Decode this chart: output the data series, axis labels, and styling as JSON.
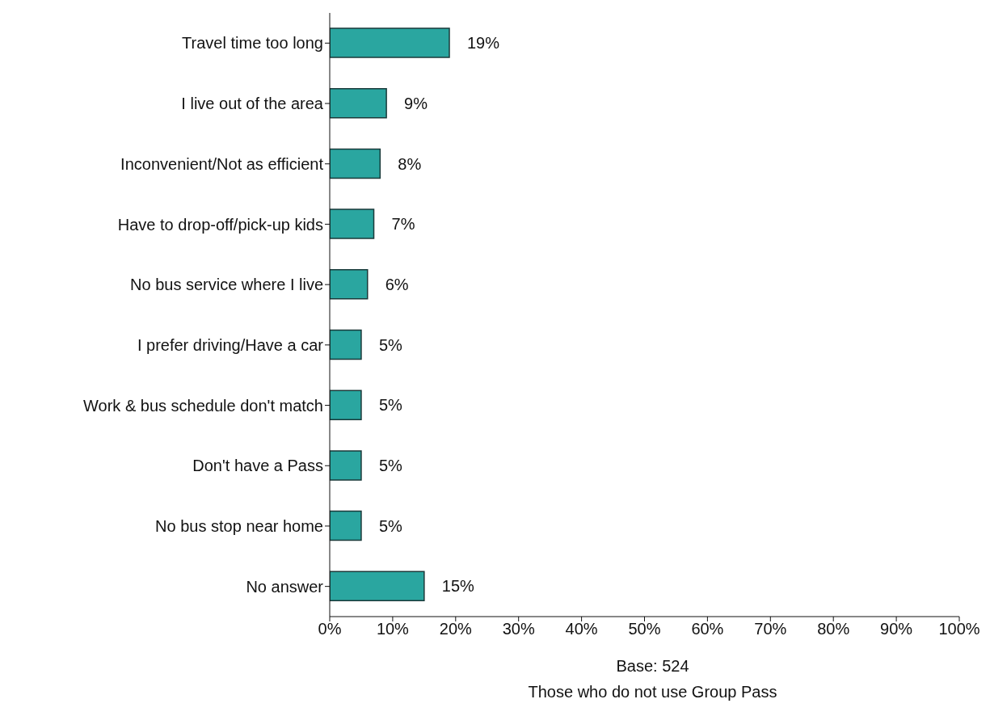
{
  "chart_data": {
    "type": "bar",
    "orientation": "horizontal",
    "categories": [
      "Travel time too long",
      "I live out of the area",
      "Inconvenient/Not as efficient",
      "Have to drop-off/pick-up kids",
      "No bus service where I live",
      "I prefer driving/Have a car",
      "Work & bus schedule don't match",
      "Don't have a Pass",
      "No bus stop near home",
      "No answer"
    ],
    "values": [
      19,
      9,
      8,
      7,
      6,
      5,
      5,
      5,
      5,
      15
    ],
    "value_labels": [
      "19%",
      "9%",
      "8%",
      "7%",
      "6%",
      "5%",
      "5%",
      "5%",
      "5%",
      "15%"
    ],
    "color": "#2aa6a0",
    "xlim": [
      0,
      100
    ],
    "xticks": [
      {
        "value": 0,
        "label": "0%"
      },
      {
        "value": 10,
        "label": "10%"
      },
      {
        "value": 20,
        "label": "20%"
      },
      {
        "value": 30,
        "label": "30%"
      },
      {
        "value": 40,
        "label": "40%"
      },
      {
        "value": 50,
        "label": "50%"
      },
      {
        "value": 60,
        "label": "60%"
      },
      {
        "value": 70,
        "label": "70%"
      },
      {
        "value": 80,
        "label": "80%"
      },
      {
        "value": 90,
        "label": "90%"
      },
      {
        "value": 100,
        "label": "100%"
      }
    ],
    "xlabel": "Base: 524",
    "annotations": [
      "Those who do not use Group Pass"
    ],
    "grid": false,
    "legend": false
  }
}
